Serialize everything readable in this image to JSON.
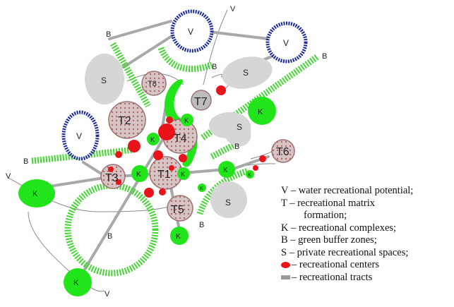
{
  "labels": {
    "V": "V",
    "T1": "T1",
    "T2": "T2",
    "T3": "T3",
    "T4": "T4",
    "T5": "T5",
    "T6": "T6",
    "T7": "T7",
    "T8": "T8",
    "K": "K",
    "B": "B",
    "S": "S"
  },
  "legend": {
    "v": "V – water recreational potential;",
    "t1": "T – recreational matrix",
    "t2": "formation;",
    "k": "K – recreational complexes;",
    "b": "B – green buffer zones;",
    "s": "S – private recreational spaces;",
    "centers": "– recreational centers",
    "tracts": "– recreational tracts"
  },
  "colors": {
    "green": "#22e41a",
    "stripe_green": "#44d433",
    "water_blue": "#1a2a9c",
    "private_gray": "#d6d6d6",
    "matrix_fill": "#d7c0c0",
    "center_red": "#e8141a",
    "tract_gray": "#a8a8a8"
  }
}
